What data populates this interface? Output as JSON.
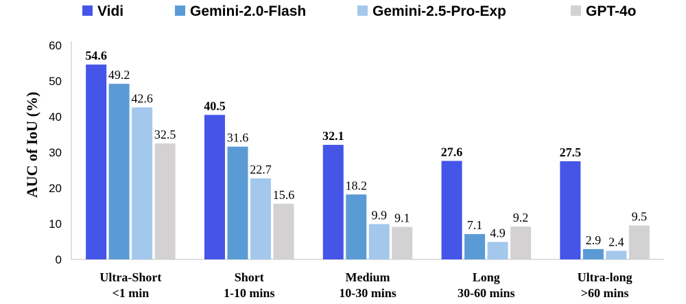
{
  "chart_data": {
    "type": "bar",
    "ylabel": "AUC of IoU (%)",
    "ylim": [
      0,
      60
    ],
    "yticks": [
      "0",
      "10",
      "20",
      "30",
      "40",
      "50",
      "60"
    ],
    "grid": false,
    "legend_position": "top",
    "categories": [
      [
        "Ultra-Short",
        "<1 min"
      ],
      [
        "Short",
        "1-10 mins"
      ],
      [
        "Medium",
        "10-30 mins"
      ],
      [
        "Long",
        "30-60 mins"
      ],
      [
        "Ultra-long",
        ">60 mins"
      ]
    ],
    "series": [
      {
        "name": "Vidi",
        "color": "#4455E8",
        "values": [
          54.6,
          40.5,
          32.1,
          27.6,
          27.5
        ],
        "labels": [
          "54.6",
          "40.5",
          "32.1",
          "27.6",
          "27.5"
        ],
        "label_bold": true
      },
      {
        "name": "Gemini-2.0-Flash",
        "color": "#5B9BD5",
        "values": [
          49.2,
          31.6,
          18.2,
          7.1,
          2.9
        ],
        "labels": [
          "49.2",
          "31.6",
          "18.2",
          "7.1",
          "2.9"
        ],
        "label_bold": false
      },
      {
        "name": "Gemini-2.5-Pro-Exp",
        "color": "#A3C8EC",
        "values": [
          42.6,
          22.7,
          9.9,
          4.9,
          2.4
        ],
        "labels": [
          "42.6",
          "22.7",
          "9.9",
          "4.9",
          "2.4"
        ],
        "label_bold": false
      },
      {
        "name": "GPT-4o",
        "color": "#D3D1D2",
        "values": [
          32.5,
          15.6,
          9.1,
          9.2,
          9.5
        ],
        "labels": [
          "32.5",
          "15.6",
          "9.1",
          "9.2",
          "9.5"
        ],
        "label_bold": false
      }
    ]
  }
}
